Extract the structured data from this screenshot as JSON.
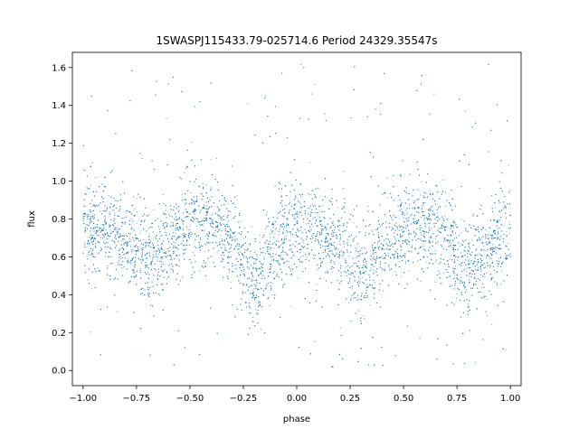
{
  "chart_data": {
    "type": "scatter",
    "title": "1SWASPJ115433.79-025714.6 Period 24329.35547s",
    "xlabel": "phase",
    "ylabel": "flux",
    "xlim": [
      -1.05,
      1.05
    ],
    "ylim": [
      -0.08,
      1.68
    ],
    "xticks": [
      -1.0,
      -0.75,
      -0.5,
      -0.25,
      0.0,
      0.25,
      0.5,
      0.75,
      1.0
    ],
    "xtick_labels": [
      "−1.00",
      "−0.75",
      "−0.50",
      "−0.25",
      "0.00",
      "0.25",
      "0.50",
      "0.75",
      "1.00"
    ],
    "yticks": [
      0.0,
      0.2,
      0.4,
      0.6,
      0.8,
      1.0,
      1.2,
      1.4,
      1.6
    ],
    "ytick_labels": [
      "0.0",
      "0.2",
      "0.4",
      "0.6",
      "0.8",
      "1.0",
      "1.2",
      "1.4",
      "1.6"
    ],
    "grid": false,
    "point_color": "#1f77b4",
    "light_curve_trend": {
      "phase": [
        -1.0,
        -0.9,
        -0.8,
        -0.7,
        -0.6,
        -0.5,
        -0.4,
        -0.3,
        -0.2,
        -0.1,
        0.0,
        0.1,
        0.2,
        0.3,
        0.4,
        0.5,
        0.6,
        0.7,
        0.8,
        0.9,
        1.0
      ],
      "flux": [
        0.72,
        0.76,
        0.7,
        0.58,
        0.66,
        0.78,
        0.79,
        0.68,
        0.45,
        0.68,
        0.76,
        0.74,
        0.66,
        0.52,
        0.66,
        0.72,
        0.78,
        0.7,
        0.52,
        0.62,
        0.72
      ]
    }
  }
}
